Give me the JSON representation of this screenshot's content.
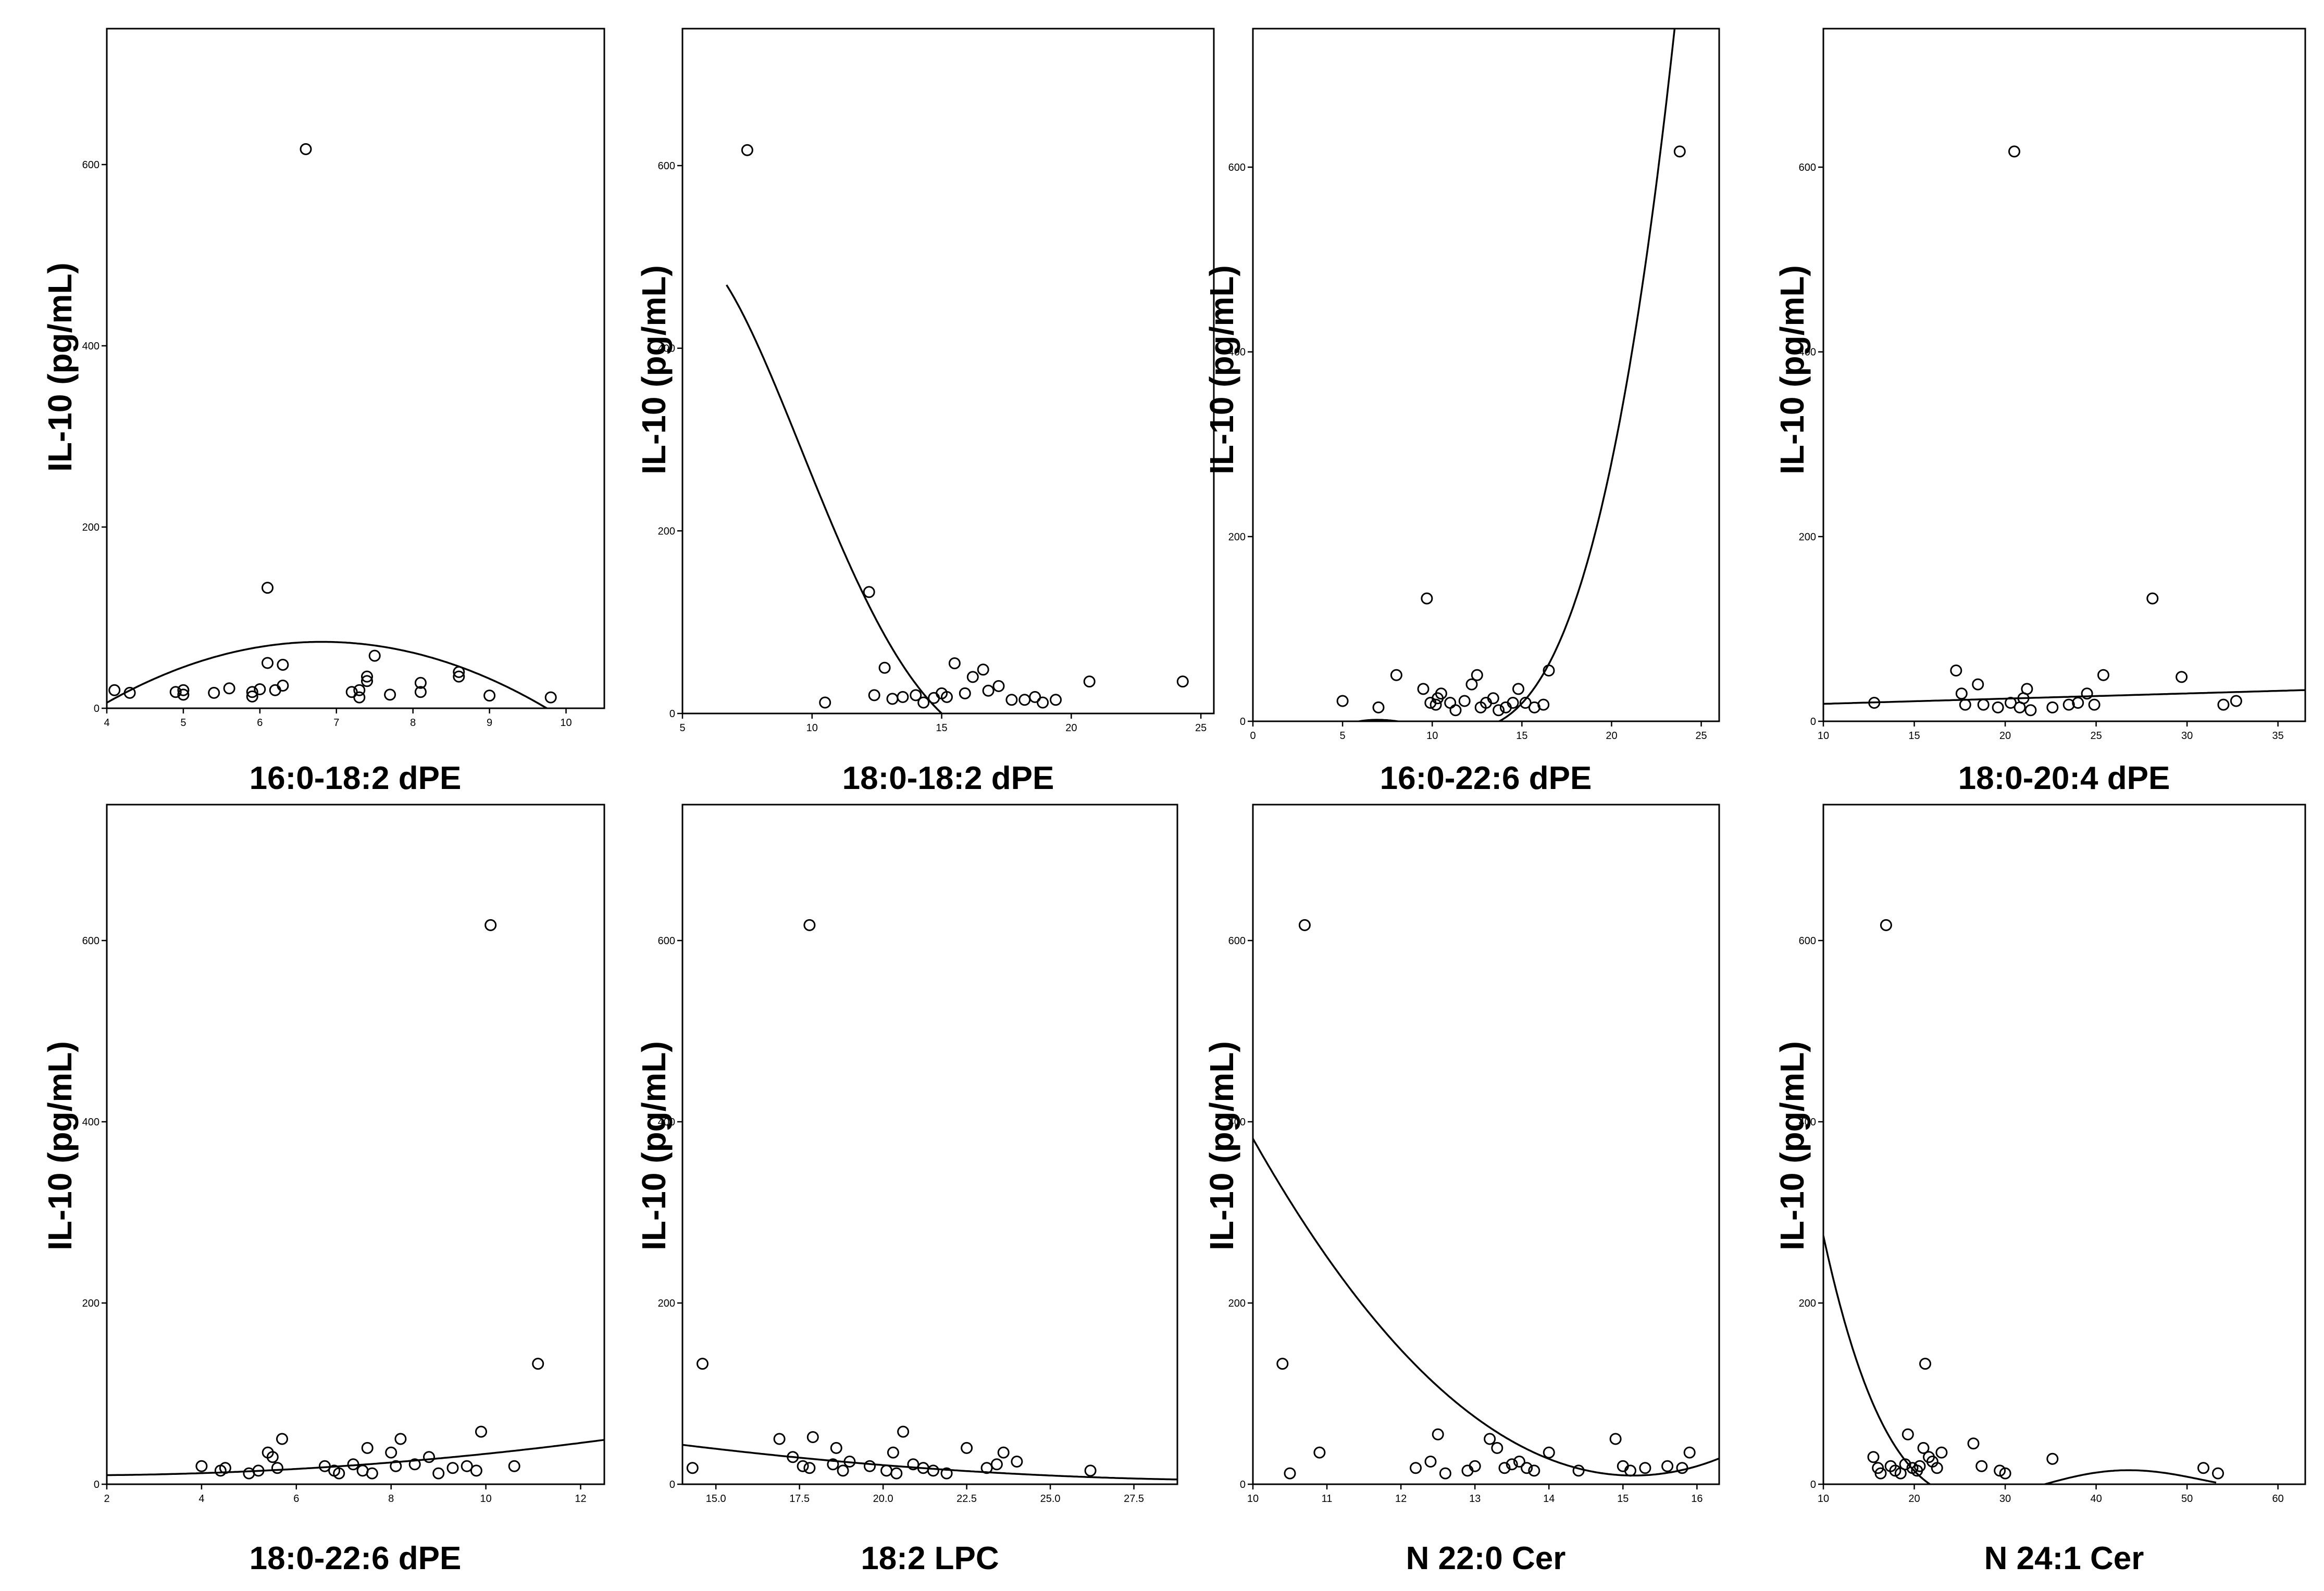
{
  "figure": {
    "y_label": "IL-10 (pg/mL)"
  },
  "chart_data": [
    {
      "type": "scatter",
      "xlabel": "16:0-18:2 dPE",
      "ylabel": "IL-10 (pg/mL)",
      "xlim": [
        4,
        10.5
      ],
      "ylim": [
        0,
        750
      ],
      "xticks": [
        4,
        5,
        6,
        7,
        8,
        9,
        10
      ],
      "yticks": [
        0,
        200,
        400,
        600
      ],
      "points": [
        [
          4.1,
          20
        ],
        [
          4.3,
          17
        ],
        [
          4.9,
          18
        ],
        [
          5.0,
          15
        ],
        [
          5.0,
          20
        ],
        [
          5.4,
          17
        ],
        [
          5.6,
          22
        ],
        [
          5.9,
          13
        ],
        [
          5.9,
          18
        ],
        [
          6.0,
          21
        ],
        [
          6.1,
          50
        ],
        [
          6.1,
          133
        ],
        [
          6.2,
          20
        ],
        [
          6.3,
          48
        ],
        [
          6.3,
          25
        ],
        [
          6.6,
          617
        ],
        [
          7.2,
          18
        ],
        [
          7.3,
          12
        ],
        [
          7.3,
          20
        ],
        [
          7.4,
          35
        ],
        [
          7.4,
          30
        ],
        [
          7.5,
          58
        ],
        [
          7.7,
          15
        ],
        [
          8.1,
          28
        ],
        [
          8.1,
          18
        ],
        [
          8.6,
          40
        ],
        [
          8.6,
          35
        ],
        [
          9.0,
          14
        ],
        [
          9.8,
          12
        ]
      ],
      "fit": {
        "kind": "quadratic",
        "coef": [
          -321.1,
          115.8,
          -8.5
        ],
        "x_range": [
          4,
          10.5
        ]
      }
    },
    {
      "type": "scatter",
      "xlabel": "18:0-18:2 dPE",
      "ylabel": "IL-10 (pg/mL)",
      "xlim": [
        5,
        25.5
      ],
      "ylim": [
        0,
        750
      ],
      "xticks": [
        5,
        10,
        15,
        20,
        25
      ],
      "yticks": [
        0,
        200,
        400,
        600
      ],
      "points": [
        [
          7.5,
          617
        ],
        [
          10.5,
          12
        ],
        [
          12.2,
          133
        ],
        [
          12.4,
          20
        ],
        [
          12.8,
          50
        ],
        [
          13.1,
          16
        ],
        [
          13.5,
          18
        ],
        [
          14.0,
          20
        ],
        [
          14.3,
          12
        ],
        [
          14.7,
          17
        ],
        [
          15.0,
          22
        ],
        [
          15.2,
          18
        ],
        [
          15.5,
          55
        ],
        [
          15.9,
          22
        ],
        [
          16.2,
          40
        ],
        [
          16.6,
          48
        ],
        [
          16.8,
          25
        ],
        [
          17.2,
          30
        ],
        [
          17.7,
          15
        ],
        [
          18.2,
          15
        ],
        [
          18.6,
          18
        ],
        [
          18.9,
          12
        ],
        [
          19.4,
          15
        ],
        [
          20.7,
          35
        ],
        [
          24.3,
          35
        ]
      ],
      "fit": {
        "kind": "quartic",
        "coef": [
          -172.1,
          327.5,
          -50.3,
          2.664,
          -0.04768
        ],
        "x_range": [
          6.7,
          24.8
        ]
      }
    },
    {
      "type": "scatter",
      "xlabel": "16:0-22:6 dPE",
      "ylabel": "IL-10 (pg/mL)",
      "xlim": [
        0,
        26
      ],
      "ylim": [
        0,
        750
      ],
      "xticks": [
        0,
        5,
        10,
        15,
        20,
        25
      ],
      "yticks": [
        0,
        200,
        400,
        600
      ],
      "points": [
        [
          5.0,
          22
        ],
        [
          7.0,
          15
        ],
        [
          8.0,
          50
        ],
        [
          9.5,
          35
        ],
        [
          9.7,
          133
        ],
        [
          9.9,
          20
        ],
        [
          10.2,
          18
        ],
        [
          10.3,
          25
        ],
        [
          10.5,
          30
        ],
        [
          11.0,
          20
        ],
        [
          11.3,
          12
        ],
        [
          11.8,
          22
        ],
        [
          12.2,
          40
        ],
        [
          12.5,
          50
        ],
        [
          12.7,
          15
        ],
        [
          13.0,
          20
        ],
        [
          13.4,
          25
        ],
        [
          13.7,
          12
        ],
        [
          14.1,
          15
        ],
        [
          14.5,
          20
        ],
        [
          14.8,
          35
        ],
        [
          15.2,
          20
        ],
        [
          15.7,
          15
        ],
        [
          16.2,
          18
        ],
        [
          16.5,
          55
        ],
        [
          23.8,
          617
        ]
      ],
      "fit": {
        "kind": "quartic",
        "coef": [
          -117.1,
          39.88,
          -3.879,
          0.05536,
          0.00443
        ],
        "x_range": [
          4.7,
          25.5
        ]
      }
    },
    {
      "type": "scatter",
      "xlabel": "18:0-20:4 dPE",
      "ylabel": "IL-10 (pg/mL)",
      "xlim": [
        10,
        36.5
      ],
      "ylim": [
        0,
        750
      ],
      "xticks": [
        10,
        15,
        20,
        25,
        30,
        35
      ],
      "yticks": [
        0,
        200,
        400,
        600
      ],
      "points": [
        [
          12.8,
          20
        ],
        [
          17.3,
          55
        ],
        [
          17.6,
          30
        ],
        [
          17.8,
          18
        ],
        [
          18.5,
          40
        ],
        [
          18.8,
          18
        ],
        [
          19.6,
          15
        ],
        [
          20.3,
          20
        ],
        [
          20.5,
          617
        ],
        [
          20.8,
          15
        ],
        [
          21.0,
          25
        ],
        [
          21.2,
          35
        ],
        [
          21.4,
          12
        ],
        [
          22.6,
          15
        ],
        [
          23.5,
          18
        ],
        [
          24.0,
          20
        ],
        [
          24.5,
          30
        ],
        [
          24.9,
          18
        ],
        [
          25.4,
          50
        ],
        [
          28.1,
          133
        ],
        [
          29.7,
          48
        ],
        [
          32.0,
          18
        ],
        [
          32.7,
          22
        ]
      ],
      "fit": {
        "kind": "linear",
        "coef": [
          13.27,
          0.5625
        ],
        "x_range": [
          10,
          36.5
        ]
      }
    },
    {
      "type": "scatter",
      "xlabel": "18:0-22:6 dPE",
      "ylabel": "IL-10 (pg/mL)",
      "xlim": [
        2,
        12.5
      ],
      "ylim": [
        0,
        750
      ],
      "xticks": [
        2,
        4,
        6,
        8,
        10,
        12
      ],
      "yticks": [
        0,
        200,
        400,
        600
      ],
      "points": [
        [
          4.0,
          20
        ],
        [
          4.4,
          15
        ],
        [
          4.5,
          18
        ],
        [
          5.0,
          12
        ],
        [
          5.2,
          15
        ],
        [
          5.4,
          35
        ],
        [
          5.5,
          30
        ],
        [
          5.6,
          18
        ],
        [
          5.7,
          50
        ],
        [
          6.6,
          20
        ],
        [
          6.8,
          15
        ],
        [
          6.9,
          12
        ],
        [
          7.2,
          22
        ],
        [
          7.4,
          15
        ],
        [
          7.5,
          40
        ],
        [
          7.6,
          12
        ],
        [
          8.0,
          35
        ],
        [
          8.1,
          20
        ],
        [
          8.2,
          50
        ],
        [
          8.5,
          22
        ],
        [
          8.8,
          30
        ],
        [
          9.0,
          12
        ],
        [
          9.3,
          18
        ],
        [
          9.6,
          20
        ],
        [
          9.8,
          15
        ],
        [
          9.9,
          58
        ],
        [
          10.1,
          617
        ],
        [
          10.6,
          20
        ],
        [
          11.1,
          133
        ]
      ],
      "fit": {
        "kind": "quadratic",
        "coef": [
          10.29,
          -0.7429,
          0.3071
        ],
        "x_range": [
          2,
          12.5
        ]
      }
    },
    {
      "type": "scatter",
      "xlabel": "18:2 LPC",
      "ylabel": "IL-10 (pg/mL)",
      "xlim": [
        14,
        28.8
      ],
      "ylim": [
        0,
        750
      ],
      "xticks": [
        15.0,
        17.5,
        20.0,
        22.5,
        25.0,
        27.5
      ],
      "yticks": [
        0,
        200,
        400,
        600
      ],
      "points": [
        [
          14.3,
          18
        ],
        [
          14.6,
          133
        ],
        [
          16.9,
          50
        ],
        [
          17.3,
          30
        ],
        [
          17.6,
          20
        ],
        [
          17.8,
          617
        ],
        [
          17.8,
          18
        ],
        [
          17.9,
          52
        ],
        [
          18.5,
          22
        ],
        [
          18.6,
          40
        ],
        [
          18.8,
          15
        ],
        [
          19.0,
          25
        ],
        [
          19.6,
          20
        ],
        [
          20.1,
          15
        ],
        [
          20.3,
          35
        ],
        [
          20.4,
          12
        ],
        [
          20.6,
          58
        ],
        [
          20.9,
          22
        ],
        [
          21.2,
          18
        ],
        [
          21.5,
          15
        ],
        [
          21.9,
          12
        ],
        [
          22.5,
          40
        ],
        [
          23.1,
          18
        ],
        [
          23.4,
          22
        ],
        [
          23.6,
          35
        ],
        [
          24.0,
          25
        ],
        [
          26.2,
          15
        ]
      ],
      "fit": {
        "kind": "quadratic",
        "coef": [
          132.2,
          -8.16,
          0.1303
        ],
        "x_range": [
          14,
          28.8
        ]
      }
    },
    {
      "type": "scatter",
      "xlabel": "N 22:0 Cer",
      "ylabel": "IL-10 (pg/mL)",
      "xlim": [
        10,
        16.3
      ],
      "ylim": [
        0,
        750
      ],
      "xticks": [
        10,
        11,
        12,
        13,
        14,
        15,
        16
      ],
      "yticks": [
        0,
        200,
        400,
        600
      ],
      "points": [
        [
          10.4,
          133
        ],
        [
          10.5,
          12
        ],
        [
          10.7,
          617
        ],
        [
          10.9,
          35
        ],
        [
          12.2,
          18
        ],
        [
          12.4,
          25
        ],
        [
          12.5,
          55
        ],
        [
          12.6,
          12
        ],
        [
          12.9,
          15
        ],
        [
          13.0,
          20
        ],
        [
          13.2,
          50
        ],
        [
          13.3,
          40
        ],
        [
          13.4,
          18
        ],
        [
          13.5,
          22
        ],
        [
          13.6,
          25
        ],
        [
          13.7,
          18
        ],
        [
          13.8,
          15
        ],
        [
          14.0,
          35
        ],
        [
          14.4,
          15
        ],
        [
          14.9,
          50
        ],
        [
          15.0,
          20
        ],
        [
          15.1,
          15
        ],
        [
          15.3,
          18
        ],
        [
          15.6,
          20
        ],
        [
          15.8,
          18
        ],
        [
          15.9,
          35
        ]
      ],
      "fit": {
        "kind": "quadratic",
        "coef": [
          3233.4,
          -425.8,
          14.06
        ],
        "x_range": [
          10,
          16.3
        ]
      }
    },
    {
      "type": "scatter",
      "xlabel": "N 24:1 Cer",
      "ylabel": "IL-10 (pg/mL)",
      "xlim": [
        10,
        63
      ],
      "ylim": [
        0,
        750
      ],
      "xticks": [
        10,
        20,
        30,
        40,
        50,
        60
      ],
      "yticks": [
        0,
        200,
        400,
        600
      ],
      "points": [
        [
          15.5,
          30
        ],
        [
          16.0,
          18
        ],
        [
          16.3,
          12
        ],
        [
          16.9,
          617
        ],
        [
          17.4,
          20
        ],
        [
          17.9,
          15
        ],
        [
          18.5,
          12
        ],
        [
          19.0,
          22
        ],
        [
          19.3,
          55
        ],
        [
          19.8,
          18
        ],
        [
          20.3,
          15
        ],
        [
          20.6,
          20
        ],
        [
          21.0,
          40
        ],
        [
          21.2,
          133
        ],
        [
          21.6,
          30
        ],
        [
          22.0,
          25
        ],
        [
          22.5,
          18
        ],
        [
          23.0,
          35
        ],
        [
          26.5,
          45
        ],
        [
          27.4,
          20
        ],
        [
          29.4,
          15
        ],
        [
          30.0,
          12
        ],
        [
          35.2,
          28
        ],
        [
          51.8,
          18
        ],
        [
          53.4,
          12
        ]
      ],
      "fit": {
        "kind": "quartic",
        "coef": [
          1053.9,
          -116.1,
          4.508,
          -0.07368,
          0.0004319
        ],
        "x_range": [
          10,
          53.2
        ]
      }
    }
  ]
}
